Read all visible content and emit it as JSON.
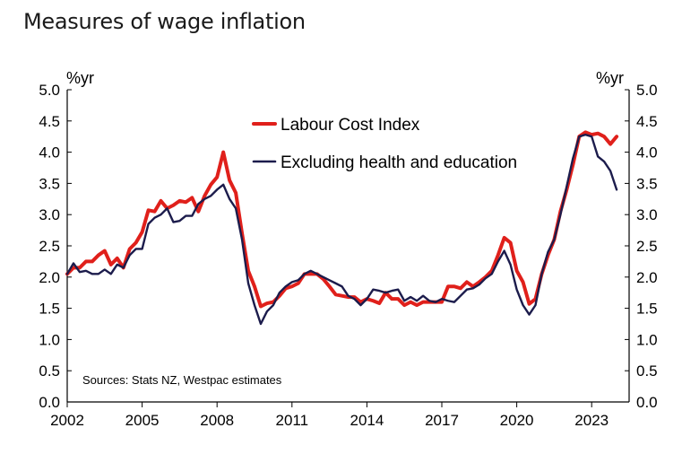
{
  "title": "Measures of wage inflation",
  "chart_data": {
    "type": "line",
    "title": "Measures of wage inflation",
    "left_unit": "%yr",
    "right_unit": "%yr",
    "ylim": [
      0,
      5
    ],
    "xlim": [
      2002,
      2024.5
    ],
    "y_ticks": [
      "0.0",
      "0.5",
      "1.0",
      "1.5",
      "2.0",
      "2.5",
      "3.0",
      "3.5",
      "4.0",
      "4.5",
      "5.0"
    ],
    "x_ticks": [
      "2002",
      "2005",
      "2008",
      "2011",
      "2014",
      "2017",
      "2020",
      "2023"
    ],
    "source": "Sources: Stats NZ, Westpac estimates",
    "legend_position": "top-center",
    "series": [
      {
        "name": "Labour Cost Index",
        "color": "#e0201b",
        "points": [
          [
            2002.0,
            2.05
          ],
          [
            2002.25,
            2.15
          ],
          [
            2002.5,
            2.15
          ],
          [
            2002.75,
            2.25
          ],
          [
            2003.0,
            2.25
          ],
          [
            2003.25,
            2.35
          ],
          [
            2003.5,
            2.42
          ],
          [
            2003.75,
            2.2
          ],
          [
            2004.0,
            2.3
          ],
          [
            2004.25,
            2.15
          ],
          [
            2004.5,
            2.45
          ],
          [
            2004.75,
            2.55
          ],
          [
            2005.0,
            2.72
          ],
          [
            2005.25,
            3.07
          ],
          [
            2005.5,
            3.05
          ],
          [
            2005.75,
            3.22
          ],
          [
            2006.0,
            3.1
          ],
          [
            2006.25,
            3.15
          ],
          [
            2006.5,
            3.22
          ],
          [
            2006.75,
            3.2
          ],
          [
            2007.0,
            3.27
          ],
          [
            2007.25,
            3.05
          ],
          [
            2007.5,
            3.3
          ],
          [
            2007.75,
            3.48
          ],
          [
            2008.0,
            3.6
          ],
          [
            2008.25,
            4.0
          ],
          [
            2008.5,
            3.55
          ],
          [
            2008.75,
            3.35
          ],
          [
            2009.0,
            2.7
          ],
          [
            2009.25,
            2.1
          ],
          [
            2009.5,
            1.85
          ],
          [
            2009.75,
            1.53
          ],
          [
            2010.0,
            1.58
          ],
          [
            2010.25,
            1.6
          ],
          [
            2010.5,
            1.7
          ],
          [
            2010.75,
            1.82
          ],
          [
            2011.0,
            1.85
          ],
          [
            2011.25,
            1.9
          ],
          [
            2011.5,
            2.05
          ],
          [
            2011.75,
            2.05
          ],
          [
            2012.0,
            2.05
          ],
          [
            2012.25,
            1.97
          ],
          [
            2012.5,
            1.85
          ],
          [
            2012.75,
            1.72
          ],
          [
            2013.0,
            1.7
          ],
          [
            2013.25,
            1.68
          ],
          [
            2013.5,
            1.68
          ],
          [
            2013.75,
            1.6
          ],
          [
            2014.0,
            1.65
          ],
          [
            2014.25,
            1.62
          ],
          [
            2014.5,
            1.58
          ],
          [
            2014.75,
            1.75
          ],
          [
            2015.0,
            1.65
          ],
          [
            2015.25,
            1.65
          ],
          [
            2015.5,
            1.55
          ],
          [
            2015.75,
            1.6
          ],
          [
            2016.0,
            1.55
          ],
          [
            2016.25,
            1.6
          ],
          [
            2016.5,
            1.6
          ],
          [
            2016.75,
            1.6
          ],
          [
            2017.0,
            1.6
          ],
          [
            2017.25,
            1.85
          ],
          [
            2017.5,
            1.85
          ],
          [
            2017.75,
            1.82
          ],
          [
            2018.0,
            1.92
          ],
          [
            2018.25,
            1.85
          ],
          [
            2018.5,
            1.92
          ],
          [
            2018.75,
            2.0
          ],
          [
            2019.0,
            2.1
          ],
          [
            2019.25,
            2.35
          ],
          [
            2019.5,
            2.63
          ],
          [
            2019.75,
            2.55
          ],
          [
            2020.0,
            2.1
          ],
          [
            2020.25,
            1.92
          ],
          [
            2020.5,
            1.57
          ],
          [
            2020.75,
            1.65
          ],
          [
            2021.0,
            2.05
          ],
          [
            2021.25,
            2.35
          ],
          [
            2021.5,
            2.6
          ],
          [
            2021.75,
            3.05
          ],
          [
            2022.0,
            3.4
          ],
          [
            2022.25,
            3.8
          ],
          [
            2022.5,
            4.25
          ],
          [
            2022.75,
            4.32
          ],
          [
            2023.0,
            4.28
          ],
          [
            2023.25,
            4.3
          ],
          [
            2023.5,
            4.25
          ],
          [
            2023.75,
            4.13
          ],
          [
            2024.0,
            4.25
          ]
        ]
      },
      {
        "name": "Excluding health and education",
        "color": "#1c1c4c",
        "points": [
          [
            2002.0,
            2.05
          ],
          [
            2002.25,
            2.22
          ],
          [
            2002.5,
            2.08
          ],
          [
            2002.75,
            2.1
          ],
          [
            2003.0,
            2.05
          ],
          [
            2003.25,
            2.05
          ],
          [
            2003.5,
            2.12
          ],
          [
            2003.75,
            2.05
          ],
          [
            2004.0,
            2.2
          ],
          [
            2004.25,
            2.15
          ],
          [
            2004.5,
            2.35
          ],
          [
            2004.75,
            2.45
          ],
          [
            2005.0,
            2.45
          ],
          [
            2005.25,
            2.85
          ],
          [
            2005.5,
            2.95
          ],
          [
            2005.75,
            3.0
          ],
          [
            2006.0,
            3.1
          ],
          [
            2006.25,
            2.88
          ],
          [
            2006.5,
            2.9
          ],
          [
            2006.75,
            2.98
          ],
          [
            2007.0,
            2.98
          ],
          [
            2007.25,
            3.17
          ],
          [
            2007.5,
            3.25
          ],
          [
            2007.75,
            3.3
          ],
          [
            2008.0,
            3.4
          ],
          [
            2008.25,
            3.48
          ],
          [
            2008.5,
            3.25
          ],
          [
            2008.75,
            3.1
          ],
          [
            2009.0,
            2.6
          ],
          [
            2009.25,
            1.9
          ],
          [
            2009.5,
            1.55
          ],
          [
            2009.75,
            1.25
          ],
          [
            2010.0,
            1.45
          ],
          [
            2010.25,
            1.55
          ],
          [
            2010.5,
            1.75
          ],
          [
            2010.75,
            1.85
          ],
          [
            2011.0,
            1.92
          ],
          [
            2011.25,
            1.95
          ],
          [
            2011.5,
            2.05
          ],
          [
            2011.75,
            2.1
          ],
          [
            2012.0,
            2.05
          ],
          [
            2012.25,
            2.0
          ],
          [
            2012.5,
            1.95
          ],
          [
            2012.75,
            1.9
          ],
          [
            2013.0,
            1.85
          ],
          [
            2013.25,
            1.7
          ],
          [
            2013.5,
            1.65
          ],
          [
            2013.75,
            1.55
          ],
          [
            2014.0,
            1.65
          ],
          [
            2014.25,
            1.8
          ],
          [
            2014.5,
            1.78
          ],
          [
            2014.75,
            1.75
          ],
          [
            2015.0,
            1.78
          ],
          [
            2015.25,
            1.8
          ],
          [
            2015.5,
            1.62
          ],
          [
            2015.75,
            1.68
          ],
          [
            2016.0,
            1.62
          ],
          [
            2016.25,
            1.7
          ],
          [
            2016.5,
            1.62
          ],
          [
            2016.75,
            1.6
          ],
          [
            2017.0,
            1.65
          ],
          [
            2017.25,
            1.62
          ],
          [
            2017.5,
            1.6
          ],
          [
            2017.75,
            1.7
          ],
          [
            2018.0,
            1.8
          ],
          [
            2018.25,
            1.82
          ],
          [
            2018.5,
            1.88
          ],
          [
            2018.75,
            1.98
          ],
          [
            2019.0,
            2.05
          ],
          [
            2019.25,
            2.25
          ],
          [
            2019.5,
            2.42
          ],
          [
            2019.75,
            2.2
          ],
          [
            2020.0,
            1.8
          ],
          [
            2020.25,
            1.55
          ],
          [
            2020.5,
            1.4
          ],
          [
            2020.75,
            1.55
          ],
          [
            2021.0,
            2.05
          ],
          [
            2021.25,
            2.4
          ],
          [
            2021.5,
            2.6
          ],
          [
            2021.75,
            3.0
          ],
          [
            2022.0,
            3.45
          ],
          [
            2022.25,
            3.9
          ],
          [
            2022.5,
            4.25
          ],
          [
            2022.75,
            4.28
          ],
          [
            2023.0,
            4.25
          ],
          [
            2023.25,
            3.93
          ],
          [
            2023.5,
            3.85
          ],
          [
            2023.75,
            3.7
          ],
          [
            2024.0,
            3.4
          ]
        ]
      }
    ]
  }
}
